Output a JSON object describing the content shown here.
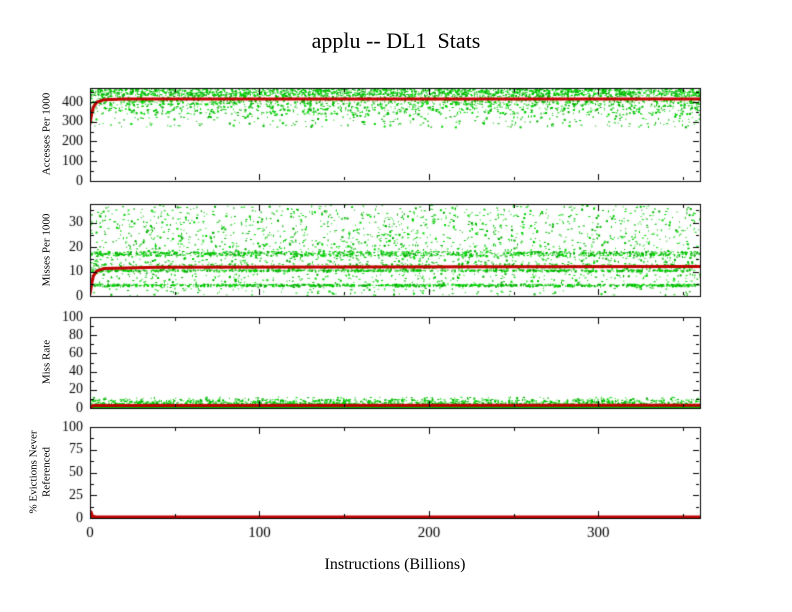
{
  "title": "applu -- DL1  Stats",
  "xlabel": "Instructions (Billions)",
  "background": "#ffffff",
  "axis_color": "#000000",
  "colors": {
    "line_red": "#c00000",
    "scatter_green": "#00c000",
    "scatter_palette": [
      "#00c000",
      "#00d800",
      "#00aa00"
    ]
  },
  "x_axis": {
    "min": 0,
    "max": 360,
    "major_ticks": [
      0,
      100,
      200,
      300
    ],
    "minor_step": 50
  },
  "chart_data": [
    {
      "type": "scatter",
      "ylabel": "Accesses Per 1000",
      "ylim": [
        0,
        470
      ],
      "yticks": [
        0,
        100,
        200,
        300,
        400
      ],
      "yminor_step": 50,
      "scatter_bands": [
        {
          "y0": 433,
          "y1": 470,
          "n": 1700,
          "seed": 11
        },
        {
          "y0": 390,
          "y1": 433,
          "n": 950,
          "seed": 12
        },
        {
          "y0": 340,
          "y1": 392,
          "n": 650,
          "seed": 13
        },
        {
          "y0": 275,
          "y1": 340,
          "n": 260,
          "seed": 14
        }
      ],
      "lines": [
        {
          "color": "#c00000",
          "width": 3,
          "points": [
            [
              0,
              290
            ],
            [
              1,
              340
            ],
            [
              2,
              373
            ],
            [
              4,
              398
            ],
            [
              8,
              410
            ],
            [
              20,
              414
            ],
            [
              360,
              415
            ]
          ]
        }
      ]
    },
    {
      "type": "scatter",
      "ylabel": "Misses Per 1000",
      "ylim": [
        0,
        37.6
      ],
      "yticks": [
        0,
        10,
        20,
        30
      ],
      "yminor_step": 5,
      "scatter_bands": [
        {
          "y0": 18.5,
          "y1": 37.4,
          "n": 1150,
          "seed": 21
        },
        {
          "y0": 16.6,
          "y1": 18.4,
          "n": 1000,
          "seed": 22
        },
        {
          "y0": 13.6,
          "y1": 16.5,
          "n": 230,
          "seed": 23
        },
        {
          "y0": 11.2,
          "y1": 13.5,
          "n": 550,
          "seed": 24
        },
        {
          "y0": 10.3,
          "y1": 10.9,
          "n": 700,
          "seed": 25
        },
        {
          "y0": 5.6,
          "y1": 9.5,
          "n": 260,
          "seed": 26
        },
        {
          "y0": 4.2,
          "y1": 5.1,
          "n": 900,
          "seed": 27
        },
        {
          "y0": 0.4,
          "y1": 4.0,
          "n": 140,
          "seed": 28
        }
      ],
      "lines": [
        {
          "color": "#c00000",
          "width": 3,
          "points": [
            [
              0,
              0.8
            ],
            [
              1,
              5
            ],
            [
              2,
              8.2
            ],
            [
              4,
              10.2
            ],
            [
              8,
              11.2
            ],
            [
              40,
              11.8
            ],
            [
              360,
              12.1
            ]
          ]
        }
      ]
    },
    {
      "type": "scatter",
      "ylabel": "Miss Rate",
      "ylim": [
        0,
        100
      ],
      "yticks": [
        0,
        20,
        40,
        60,
        80,
        100
      ],
      "yminor_step": 10,
      "scatter_bands": [
        {
          "y0": 1.5,
          "y1": 6,
          "n": 1500,
          "seed": 31
        },
        {
          "y0": 6,
          "y1": 10,
          "n": 600,
          "seed": 32
        },
        {
          "y0": 10,
          "y1": 12.5,
          "n": 90,
          "seed": 33
        }
      ],
      "lines": [
        {
          "color": "#00c000",
          "width": 2,
          "points": [
            [
              0,
              0.8
            ],
            [
              360,
              0.8
            ]
          ]
        },
        {
          "color": "#c00000",
          "width": 3,
          "points": [
            [
              0,
              1
            ],
            [
              2,
              2.8
            ],
            [
              360,
              3
            ]
          ]
        }
      ]
    },
    {
      "type": "line",
      "ylabel": "% Evictions Never\nReferenced",
      "ylim": [
        0,
        100
      ],
      "yticks": [
        0,
        25,
        50,
        75,
        100
      ],
      "yminor_step": 12.5,
      "scatter_bands": [],
      "lines": [
        {
          "color": "#00c000",
          "width": 2,
          "points": [
            [
              0,
              0.3
            ],
            [
              360,
              0.3
            ]
          ]
        },
        {
          "color": "#c00000",
          "width": 3,
          "points": [
            [
              0,
              0.5
            ],
            [
              0.5,
              7
            ],
            [
              1.5,
              2
            ],
            [
              3,
              1.3
            ],
            [
              360,
              1.2
            ]
          ]
        }
      ]
    }
  ]
}
